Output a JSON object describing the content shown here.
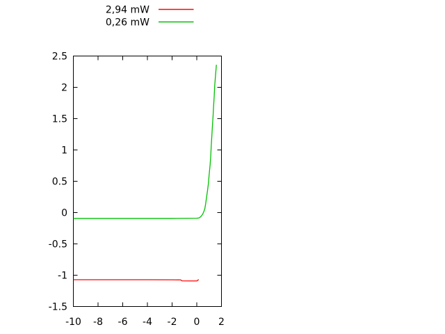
{
  "chart_data": {
    "type": "line",
    "title": "",
    "xlabel": "",
    "ylabel": "",
    "grid": false,
    "background": "#ffffff",
    "border_color": "#000000",
    "text_color": "#000000",
    "legend_position": "above-plot-centered",
    "xlim": [
      -10,
      2
    ],
    "ylim": [
      -1.5,
      2.5
    ],
    "xticks": {
      "values": [
        -10,
        -8,
        -6,
        -4,
        -2,
        0,
        2
      ],
      "labels": [
        "-10",
        "-8",
        "-6",
        "-4",
        "-2",
        "0",
        "2"
      ]
    },
    "yticks": {
      "values": [
        -1.5,
        -1,
        -0.5,
        0,
        0.5,
        1,
        1.5,
        2,
        2.5
      ],
      "labels": [
        "-1.5",
        "-1",
        "-0.5",
        "0",
        "0.5",
        "1",
        "1.5",
        "2",
        "2.5"
      ]
    },
    "series": [
      {
        "name": "2,94 mW",
        "color": "#ff0000",
        "points": [
          [
            -10,
            -1.072
          ],
          [
            -8,
            -1.072
          ],
          [
            -6,
            -1.072
          ],
          [
            -4,
            -1.072
          ],
          [
            -2,
            -1.074
          ],
          [
            -1.3,
            -1.075
          ],
          [
            -1.2,
            -1.09
          ],
          [
            -0.6,
            -1.092
          ],
          [
            0.0,
            -1.092
          ],
          [
            0.08,
            -1.082
          ],
          [
            0.15,
            -1.068
          ]
        ]
      },
      {
        "name": "0,26 mW",
        "color": "#00c000",
        "points": [
          [
            -10,
            -0.094
          ],
          [
            -8,
            -0.094
          ],
          [
            -6,
            -0.094
          ],
          [
            -4,
            -0.094
          ],
          [
            -2,
            -0.094
          ],
          [
            0.0,
            -0.09
          ],
          [
            0.2,
            -0.085
          ],
          [
            0.35,
            -0.06
          ],
          [
            0.48,
            -0.025
          ],
          [
            0.58,
            0.02
          ],
          [
            0.65,
            0.06
          ],
          [
            0.72,
            0.14
          ],
          [
            0.79,
            0.24
          ],
          [
            0.87,
            0.35
          ],
          [
            0.94,
            0.46
          ],
          [
            1.0,
            0.6
          ],
          [
            1.08,
            0.76
          ],
          [
            1.13,
            0.9
          ],
          [
            1.17,
            1.06
          ],
          [
            1.22,
            1.22
          ],
          [
            1.27,
            1.39
          ],
          [
            1.32,
            1.54
          ],
          [
            1.36,
            1.69
          ],
          [
            1.41,
            1.85
          ],
          [
            1.45,
            2.02
          ],
          [
            1.52,
            2.19
          ],
          [
            1.59,
            2.36
          ]
        ]
      }
    ]
  }
}
